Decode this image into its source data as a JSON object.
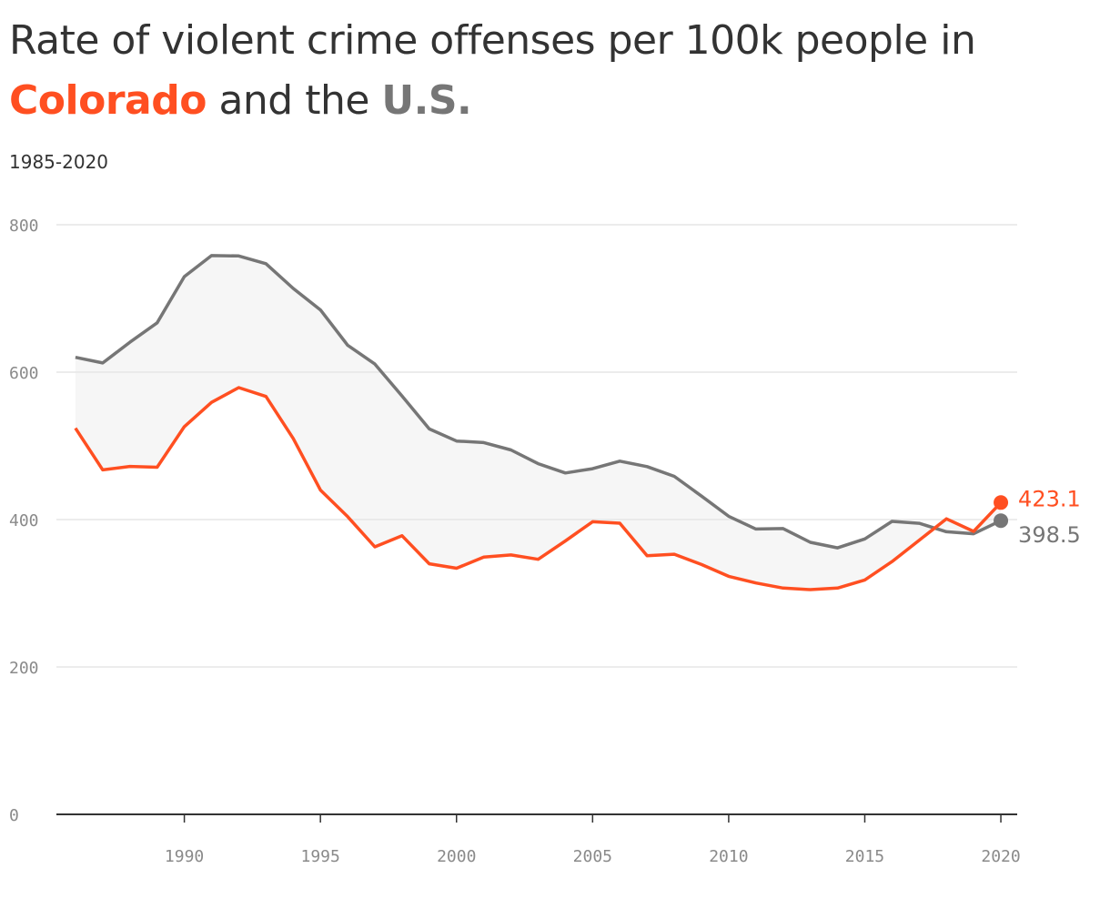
{
  "header": {
    "title_line1": "Rate of violent crime offenses per 100k people in",
    "title_colorado": "Colorado",
    "title_and_the": " and the ",
    "title_us": "U.S.",
    "subtitle": "1985-2020"
  },
  "colors": {
    "colorado": "#FF4F21",
    "us": "#767676",
    "band_fill": "#F6F6F6",
    "gridline": "#E5E5E5",
    "baseline": "#333333"
  },
  "chart_data": {
    "type": "line",
    "title": "Rate of violent crime offenses per 100k people in Colorado and the U.S.",
    "subtitle": "1985-2020",
    "xlabel": "",
    "ylabel": "",
    "xlim": [
      1985.3,
      2020.6
    ],
    "ylim": [
      0,
      800
    ],
    "yticks": [
      0,
      200,
      400,
      600,
      800
    ],
    "xticks": [
      1990,
      1995,
      2000,
      2005,
      2010,
      2015,
      2020
    ],
    "grid": true,
    "x": [
      1986,
      1987,
      1988,
      1989,
      1990,
      1991,
      1992,
      1993,
      1994,
      1995,
      1996,
      1997,
      1998,
      1999,
      2000,
      2001,
      2002,
      2003,
      2004,
      2005,
      2006,
      2007,
      2008,
      2009,
      2010,
      2011,
      2012,
      2013,
      2014,
      2015,
      2016,
      2017,
      2018,
      2019,
      2020
    ],
    "series": [
      {
        "name": "U.S.",
        "values": [
          620.1,
          612.5,
          640.6,
          666.9,
          729.6,
          758.2,
          757.7,
          747.1,
          713.6,
          684.5,
          636.6,
          611.0,
          567.6,
          523.0,
          506.5,
          504.5,
          494.4,
          475.8,
          463.2,
          469.0,
          479.3,
          471.8,
          458.6,
          431.9,
          404.5,
          387.1,
          387.8,
          369.1,
          361.6,
          373.7,
          397.5,
          394.9,
          383.4,
          380.8,
          398.5
        ],
        "end_label": "398.5"
      },
      {
        "name": "Colorado",
        "values": [
          524.0,
          467.4,
          472.1,
          471.0,
          526.0,
          559.0,
          579.0,
          567.0,
          510.0,
          440.0,
          404.0,
          363.0,
          378.0,
          340.0,
          334.0,
          349.0,
          352.0,
          346.0,
          371.0,
          397.0,
          395.0,
          351.0,
          353.0,
          339.0,
          323.0,
          314.0,
          307.0,
          305.0,
          307.0,
          318.0,
          343.0,
          372.0,
          401.0,
          384.0,
          423.1
        ],
        "end_label": "423.1"
      }
    ]
  }
}
